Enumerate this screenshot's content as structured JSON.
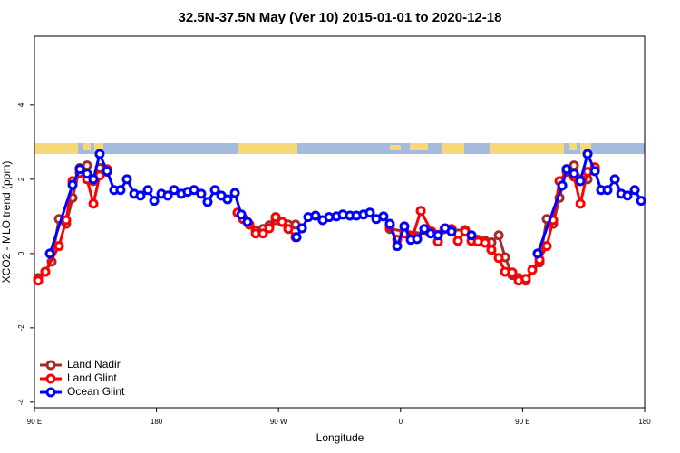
{
  "chart_data": {
    "type": "line",
    "title": "32.5N-37.5N May (Ver 10)   2015-01-01 to 2020-12-18",
    "xlabel": "Longitude",
    "ylabel": "XCO2 - MLO trend (ppm)",
    "xlim": [
      90,
      540
    ],
    "ylim": [
      -4.15,
      5.85
    ],
    "xticks": [
      {
        "value": 90,
        "label": "90 E"
      },
      180,
      {
        "value": 270,
        "label": "90 W"
      },
      {
        "value": 360,
        "label": "0"
      },
      {
        "value": 450,
        "label": "90 E"
      },
      {
        "value": 540,
        "label": "180"
      }
    ],
    "yticks": [
      -4,
      -2,
      0,
      2,
      4
    ],
    "legend": "bottom-left",
    "series": [
      {
        "name": "Land Nadir",
        "color": "#a52a2a",
        "x": [
          92.7,
          98.0,
          102.7,
          108.1,
          113.4,
          118.1,
          123.4,
          128.8,
          133.5,
          138.1,
          143.5,
          190,
          239.8,
          243.8,
          248.5,
          253.2,
          258.5,
          263.2,
          267.9,
          272.6,
          277.2,
          282.6,
          320,
          352.1,
          362.8,
          387.6,
          397.6,
          407.6,
          417.0,
          422.3,
          427.0,
          432.4,
          437.1,
          442.4,
          447.1,
          452.4,
          462.5,
          467.8,
          472.5,
          477.2,
          482.5,
          487.9,
          492.6,
          497.9,
          503.3
        ],
        "values": [
          -0.66,
          -0.49,
          -0.22,
          0.93,
          0.8,
          1.5,
          2.3,
          2.37,
          1.95,
          2.3,
          2.2,
          null,
          1.1,
          0.95,
          0.78,
          0.62,
          0.66,
          0.76,
          0.9,
          0.85,
          0.78,
          0.78,
          null,
          0.66,
          0.6,
          0.5,
          0.63,
          0.63,
          0.37,
          0.34,
          0.3,
          0.49,
          -0.1,
          -0.58,
          -0.66,
          -0.73,
          -0.24,
          0.93,
          0.8,
          1.5,
          2.27,
          2.37,
          2.0,
          2.0,
          2.32
        ]
      },
      {
        "name": "Land Glint",
        "color": "#ff0000",
        "x": [
          92.7,
          98.0,
          108.1,
          113.4,
          118.1,
          123.4,
          128.8,
          133.5,
          138.1,
          143.5,
          190,
          239.8,
          243.8,
          248.5,
          253.2,
          258.5,
          263.2,
          267.9,
          272.6,
          277.2,
          282.6,
          320,
          352.1,
          357.5,
          362.8,
          368.8,
          374.9,
          382.9,
          387.6,
          392.3,
          397.6,
          402.3,
          407.6,
          412.3,
          417.0,
          422.3,
          427.0,
          432.4,
          437.1,
          442.4,
          447.1,
          452.4,
          457.1,
          462.5,
          467.8,
          472.5,
          477.2,
          482.5,
          487.9,
          492.6,
          497.9,
          503.3
        ],
        "values": [
          -0.73,
          -0.49,
          0.2,
          0.9,
          1.95,
          2.17,
          2.0,
          1.34,
          2.1,
          2.27,
          null,
          1.1,
          0.93,
          0.78,
          0.54,
          0.54,
          0.68,
          0.98,
          0.85,
          0.66,
          0.44,
          null,
          0.73,
          0.37,
          0.54,
          0.44,
          1.15,
          0.59,
          0.32,
          0.66,
          0.66,
          0.34,
          0.59,
          0.34,
          0.32,
          0.29,
          0.1,
          -0.12,
          -0.49,
          -0.51,
          -0.73,
          -0.68,
          -0.44,
          -0.17,
          0.2,
          0.9,
          1.95,
          2.2,
          2.07,
          1.34,
          2.2,
          2.32
        ]
      },
      {
        "name": "Ocean Glint",
        "color": "#0000ff",
        "x": [
          101.4,
          118.1,
          123.4,
          128.8,
          133.5,
          138.1,
          143.5,
          148.8,
          153.5,
          158.2,
          163.6,
          168.2,
          173.6,
          178.3,
          183.6,
          188.3,
          193.0,
          198.3,
          203.0,
          207.7,
          213.0,
          217.7,
          223.1,
          227.8,
          232.4,
          237.8,
          242.5,
          247.1,
          265,
          283.3,
          287.3,
          291.9,
          297.3,
          302.6,
          307.3,
          312.7,
          317.4,
          322.7,
          327.4,
          332.7,
          337.4,
          342.1,
          347.4,
          352.1,
          357.5,
          362.8,
          367.5,
          372.2,
          377.5,
          382.2,
          387.6,
          392.9,
          397.6,
          405,
          412.3,
          440,
          461.1,
          479.2,
          482.5,
          487.9,
          492.6,
          497.9,
          503.3,
          507.9,
          512.6,
          518.0,
          522.7,
          527.3,
          532.7,
          537.4
        ],
        "values": [
          0,
          1.85,
          2.27,
          2.15,
          2.0,
          2.68,
          2.22,
          1.71,
          1.71,
          2.0,
          1.61,
          1.56,
          1.71,
          1.42,
          1.61,
          1.56,
          1.71,
          1.61,
          1.66,
          1.71,
          1.61,
          1.39,
          1.71,
          1.56,
          1.46,
          1.63,
          1.05,
          0.85,
          null,
          0.44,
          0.68,
          0.98,
          1.02,
          0.9,
          0.98,
          1.0,
          1.05,
          1.02,
          1.02,
          1.05,
          1.1,
          0.93,
          1.0,
          0.8,
          0.2,
          0.73,
          0.37,
          0.39,
          0.66,
          0.54,
          0.49,
          0.68,
          0.59,
          null,
          0.49,
          null,
          0,
          1.83,
          2.27,
          2.15,
          1.95,
          2.68,
          2.22,
          1.71,
          1.71,
          2.0,
          1.61,
          1.56,
          1.71,
          1.42
        ]
      }
    ]
  }
}
